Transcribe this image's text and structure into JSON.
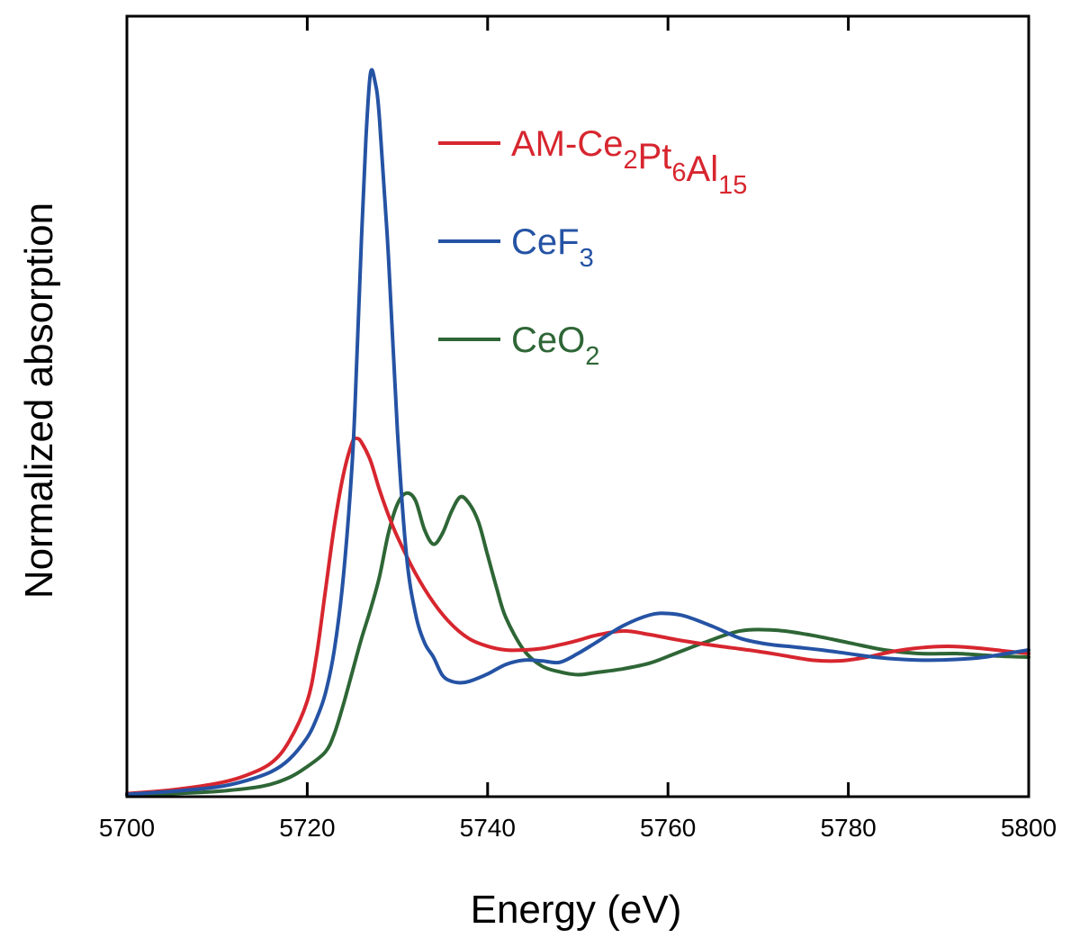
{
  "chart_data": {
    "type": "line",
    "title": "",
    "xlabel": "Energy (eV)",
    "ylabel": "Normalized absorption",
    "xlim": [
      5700,
      5800
    ],
    "ylim": [
      0,
      1
    ],
    "xticks": [
      5700,
      5720,
      5740,
      5760,
      5780,
      5800
    ],
    "xtick_labels": [
      "5700",
      "5720",
      "5740",
      "5760",
      "5780",
      "5800"
    ],
    "grid": false,
    "legend_position": "top-right",
    "series": [
      {
        "name": "AM-Ce2Pt6Al15",
        "label_parts": [
          {
            "t": "AM-Ce",
            "sub": false
          },
          {
            "t": "2",
            "sub": true
          },
          {
            "t": "Pt",
            "sub": false
          },
          {
            "t": "6",
            "sub": true
          },
          {
            "t": "Al",
            "sub": false
          },
          {
            "t": "15",
            "sub": true
          }
        ],
        "color": "#d7262f",
        "x": [
          5700,
          5705,
          5710,
          5713,
          5716,
          5718,
          5720,
          5721,
          5722,
          5723,
          5724,
          5725,
          5725.5,
          5726,
          5727,
          5728,
          5729,
          5730,
          5732,
          5734,
          5736,
          5738,
          5740,
          5742,
          5744,
          5746,
          5748,
          5750,
          5752,
          5755,
          5758,
          5761,
          5764,
          5767,
          5770,
          5773,
          5776,
          5779,
          5782,
          5785,
          5788,
          5791,
          5794,
          5797,
          5800
        ],
        "y": [
          0.003,
          0.008,
          0.017,
          0.027,
          0.045,
          0.075,
          0.13,
          0.19,
          0.28,
          0.37,
          0.44,
          0.485,
          0.49,
          0.485,
          0.46,
          0.42,
          0.385,
          0.355,
          0.305,
          0.265,
          0.235,
          0.215,
          0.205,
          0.2,
          0.2,
          0.202,
          0.207,
          0.213,
          0.22,
          0.226,
          0.221,
          0.214,
          0.208,
          0.203,
          0.198,
          0.192,
          0.186,
          0.185,
          0.19,
          0.198,
          0.203,
          0.205,
          0.203,
          0.199,
          0.195
        ]
      },
      {
        "name": "CeF3",
        "label_parts": [
          {
            "t": "CeF",
            "sub": false
          },
          {
            "t": "3",
            "sub": true
          }
        ],
        "color": "#2553a4",
        "x": [
          5700,
          5705,
          5710,
          5713,
          5716,
          5718,
          5720,
          5721,
          5722,
          5723,
          5724,
          5725,
          5725.5,
          5726,
          5726.5,
          5727,
          5727.5,
          5728,
          5729,
          5730,
          5731,
          5732,
          5733,
          5734,
          5735,
          5736,
          5737,
          5738,
          5740,
          5742,
          5744,
          5746,
          5748,
          5750,
          5752,
          5755,
          5758,
          5760,
          5762,
          5765,
          5768,
          5771,
          5774,
          5777,
          5780,
          5783,
          5786,
          5789,
          5792,
          5795,
          5798,
          5800
        ],
        "y": [
          0.002,
          0.006,
          0.012,
          0.02,
          0.033,
          0.05,
          0.08,
          0.105,
          0.14,
          0.2,
          0.3,
          0.46,
          0.6,
          0.76,
          0.9,
          0.99,
          0.98,
          0.93,
          0.74,
          0.5,
          0.33,
          0.25,
          0.21,
          0.19,
          0.165,
          0.157,
          0.155,
          0.157,
          0.167,
          0.18,
          0.186,
          0.185,
          0.183,
          0.195,
          0.21,
          0.233,
          0.248,
          0.25,
          0.246,
          0.232,
          0.216,
          0.208,
          0.204,
          0.2,
          0.195,
          0.19,
          0.187,
          0.186,
          0.187,
          0.19,
          0.196,
          0.2
        ]
      },
      {
        "name": "CeO2",
        "label_parts": [
          {
            "t": "CeO",
            "sub": false
          },
          {
            "t": "2",
            "sub": true
          }
        ],
        "color": "#2e6636",
        "x": [
          5700,
          5705,
          5710,
          5715,
          5718,
          5720,
          5722,
          5723,
          5724,
          5725,
          5726,
          5727,
          5728,
          5729,
          5730,
          5731,
          5732,
          5733,
          5734,
          5735,
          5736,
          5737,
          5738,
          5739,
          5740,
          5741,
          5742,
          5744,
          5746,
          5748,
          5750,
          5752,
          5755,
          5758,
          5761,
          5764,
          5768,
          5772,
          5776,
          5780,
          5784,
          5788,
          5792,
          5796,
          5800
        ],
        "y": [
          0.001,
          0.003,
          0.006,
          0.013,
          0.025,
          0.04,
          0.06,
          0.085,
          0.125,
          0.17,
          0.215,
          0.255,
          0.3,
          0.36,
          0.4,
          0.415,
          0.405,
          0.365,
          0.345,
          0.36,
          0.39,
          0.41,
          0.4,
          0.375,
          0.33,
          0.285,
          0.245,
          0.2,
          0.178,
          0.17,
          0.166,
          0.169,
          0.174,
          0.182,
          0.196,
          0.21,
          0.226,
          0.227,
          0.22,
          0.21,
          0.2,
          0.195,
          0.195,
          0.192,
          0.19
        ]
      }
    ]
  }
}
